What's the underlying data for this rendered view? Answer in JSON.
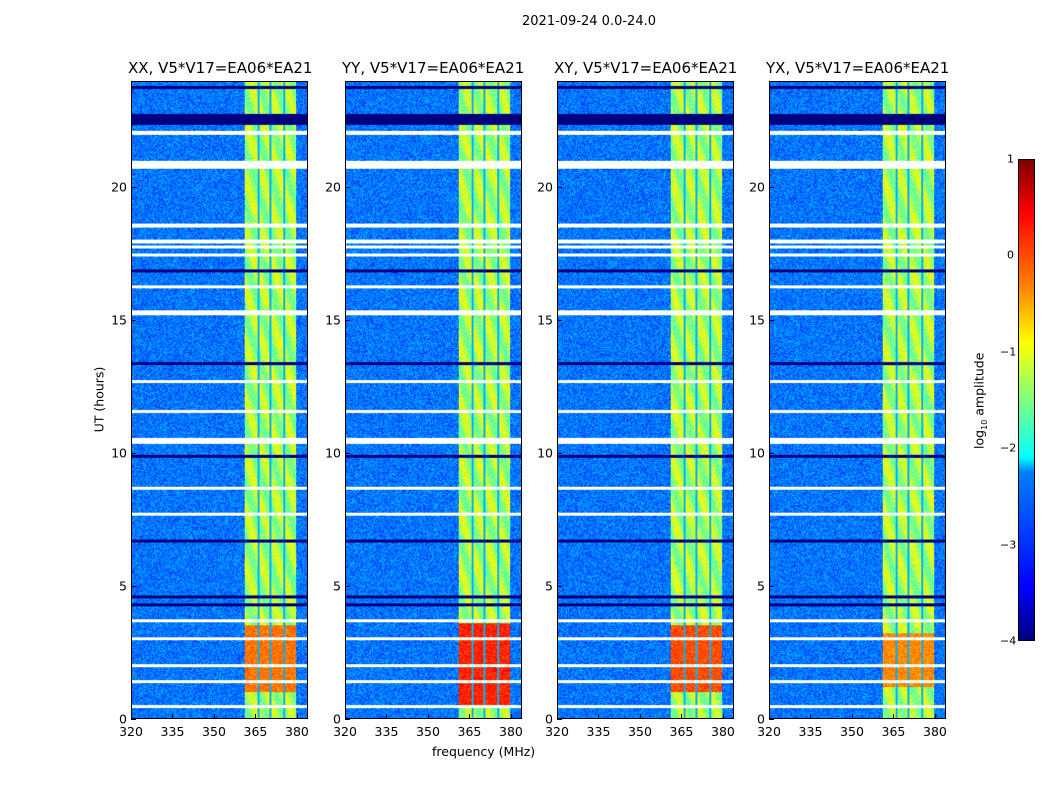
{
  "suptitle": "2021-09-24 0.0-24.0",
  "chart_data": {
    "type": "heatmap",
    "title": "2021-09-24 0.0-24.0",
    "xlabel": "frequency (MHz)",
    "ylabel": "UT (hours)",
    "xlim": [
      320,
      384
    ],
    "ylim": [
      0,
      24
    ],
    "xticks": [
      "320",
      "335",
      "350",
      "365",
      "380"
    ],
    "yticks": [
      "0",
      "5",
      "10",
      "15",
      "20"
    ],
    "colorbar": {
      "label_main": "log",
      "label_sub": "10",
      "label_rest": " amplitude",
      "range": [
        -4,
        1
      ],
      "ticks": [
        "1",
        "0",
        "−1",
        "−2",
        "−3",
        "−4"
      ],
      "colormap": "jet"
    },
    "background_log_amp": -2.8,
    "band": {
      "freq_range": [
        361,
        380
      ],
      "log_amp": -1.3,
      "channel_gaps_MHz": [
        366,
        370.5,
        375.5
      ]
    },
    "flagged_times_hours": [
      0.45,
      1.4,
      2.0,
      3.0,
      3.7,
      7.7,
      8.7,
      10.5,
      11.6,
      12.7,
      15.3,
      16.3,
      17.5,
      17.8,
      18.0,
      18.6,
      20.9,
      22.1
    ],
    "dropout_times_hours": [
      4.3,
      4.6,
      6.7,
      9.9,
      13.4,
      16.9,
      22.6,
      23.8
    ],
    "panels": [
      {
        "title": "XX, V5*V17=EA06*EA21",
        "bright_interval_hours": [
          1,
          3.5
        ],
        "bright_log_amp": -0.2
      },
      {
        "title": "YY, V5*V17=EA06*EA21",
        "bright_interval_hours": [
          0.5,
          3.6
        ],
        "bright_log_amp": 0.2
      },
      {
        "title": "XY, V5*V17=EA06*EA21",
        "bright_interval_hours": [
          1,
          3.5
        ],
        "bright_log_amp": 0.0
      },
      {
        "title": "YX, V5*V17=EA06*EA21",
        "bright_interval_hours": [
          1.2,
          3.2
        ],
        "bright_log_amp": -0.3
      }
    ]
  }
}
